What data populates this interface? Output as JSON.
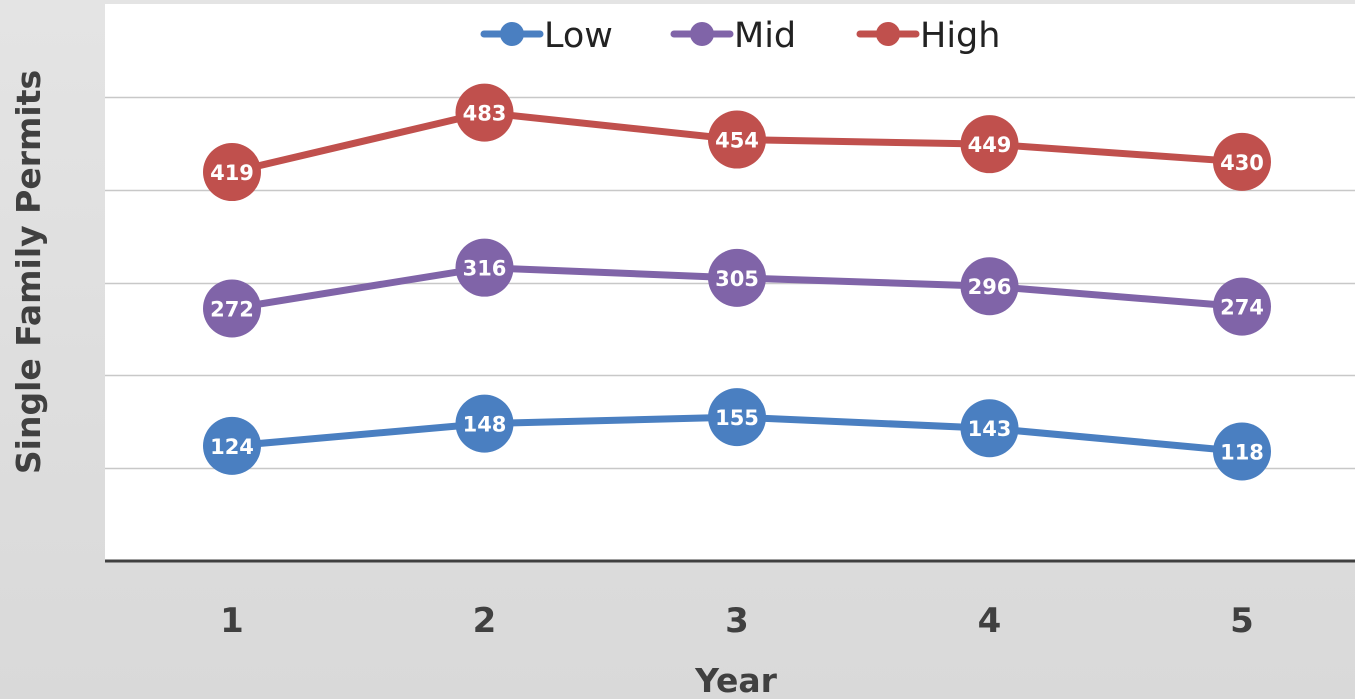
{
  "chart_data": {
    "type": "line",
    "title": "",
    "xlabel": "Year",
    "ylabel": "Single Family Permits",
    "categories": [
      "1",
      "2",
      "3",
      "4",
      "5"
    ],
    "series": [
      {
        "name": "Low",
        "color": "#4a7fc1",
        "values": [
          124,
          148,
          155,
          143,
          118
        ]
      },
      {
        "name": "Mid",
        "color": "#8064a8",
        "values": [
          272,
          316,
          305,
          296,
          274
        ]
      },
      {
        "name": "High",
        "color": "#c0504d",
        "values": [
          419,
          483,
          454,
          449,
          430
        ]
      }
    ],
    "ylim": [
      0,
      600
    ],
    "y_gridlines": [
      100,
      200,
      300,
      400,
      500
    ],
    "y_tick_labels_shown": false,
    "grid": true,
    "legend_position": "top",
    "data_labels": true
  }
}
